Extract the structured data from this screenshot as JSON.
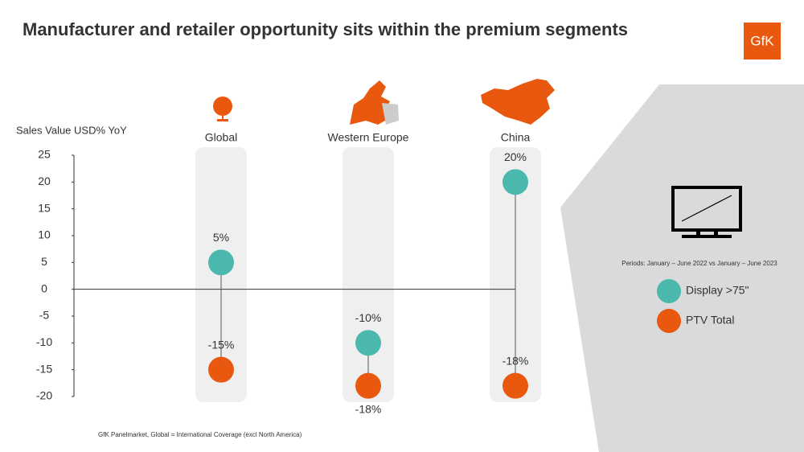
{
  "chart_data": {
    "type": "dot",
    "title": "Manufacturer and retailer opportunity sits within the premium segments",
    "logo": "GfK",
    "y_label": "Sales Value USD% YoY",
    "categories": [
      "Global",
      "Western Europe",
      "China"
    ],
    "series": [
      {
        "name": "Display >75\"",
        "color": "#4bb8ad",
        "values": [
          5,
          -10,
          20
        ],
        "value_labels": [
          "5%",
          "-10%",
          "20%"
        ]
      },
      {
        "name": "PTV Total",
        "color": "#e9580f",
        "values": [
          -15,
          -18,
          -18
        ],
        "value_labels": [
          "-15%",
          "-18%",
          "-18%"
        ]
      }
    ],
    "ylim": [
      -20,
      25
    ],
    "yticks": [
      -20,
      -15,
      -10,
      -5,
      0,
      5,
      10,
      15,
      20,
      25
    ],
    "periods": "Periods: January – June 2022 vs January – June 2023",
    "source": "GfK Panelmarket, Global = International Coverage (excl North America)"
  }
}
